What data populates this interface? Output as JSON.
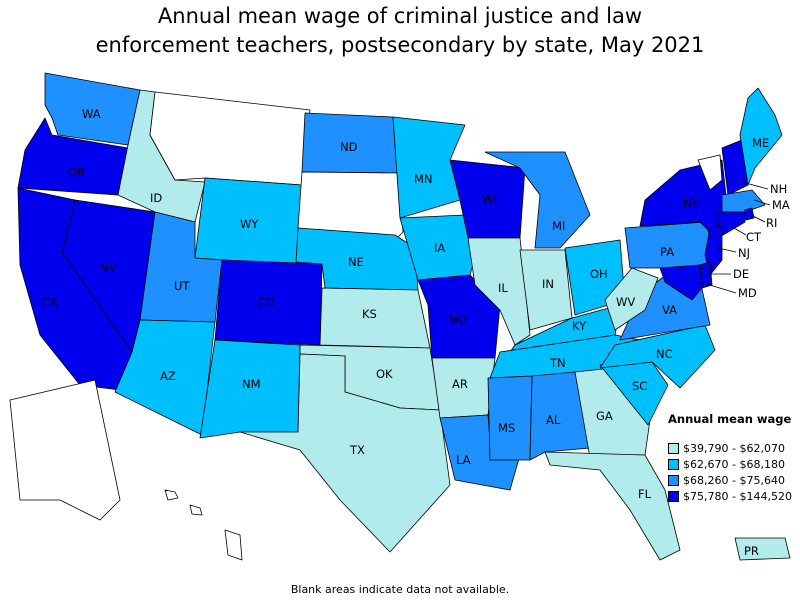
{
  "title": {
    "line1": "Annual mean wage of criminal justice and law",
    "line2": "enforcement teachers, postsecondary by state, May 2021"
  },
  "legend": {
    "title": "Annual mean wage",
    "items": [
      {
        "label": "$39,790 - $62,070",
        "color": "#b2ebec"
      },
      {
        "label": "$62,670 - $68,180",
        "color": "#00bfff"
      },
      {
        "label": "$68,260 - $75,640",
        "color": "#1e90ff"
      },
      {
        "label": "$75,780 - $144,520",
        "color": "#0000ee"
      }
    ]
  },
  "footnote": "Blank areas indicate data not available.",
  "colors": {
    "none": "#ffffff",
    "tier1": "#b2ebec",
    "tier2": "#00bfff",
    "tier3": "#1e90ff",
    "tier4": "#0000ee"
  },
  "states": [
    {
      "abbr": "WA",
      "tier": 3
    },
    {
      "abbr": "OR",
      "tier": 4
    },
    {
      "abbr": "CA",
      "tier": 4
    },
    {
      "abbr": "NV",
      "tier": 4
    },
    {
      "abbr": "ID",
      "tier": 1
    },
    {
      "abbr": "MT",
      "tier": 0
    },
    {
      "abbr": "WY",
      "tier": 2
    },
    {
      "abbr": "UT",
      "tier": 3
    },
    {
      "abbr": "AZ",
      "tier": 2
    },
    {
      "abbr": "CO",
      "tier": 4
    },
    {
      "abbr": "NM",
      "tier": 2
    },
    {
      "abbr": "ND",
      "tier": 3
    },
    {
      "abbr": "SD",
      "tier": 0
    },
    {
      "abbr": "NE",
      "tier": 2
    },
    {
      "abbr": "KS",
      "tier": 1
    },
    {
      "abbr": "OK",
      "tier": 1
    },
    {
      "abbr": "TX",
      "tier": 1
    },
    {
      "abbr": "MN",
      "tier": 2
    },
    {
      "abbr": "IA",
      "tier": 2
    },
    {
      "abbr": "MO",
      "tier": 4
    },
    {
      "abbr": "AR",
      "tier": 1
    },
    {
      "abbr": "LA",
      "tier": 3
    },
    {
      "abbr": "WI",
      "tier": 4
    },
    {
      "abbr": "IL",
      "tier": 1
    },
    {
      "abbr": "MI",
      "tier": 3
    },
    {
      "abbr": "IN",
      "tier": 1
    },
    {
      "abbr": "OH",
      "tier": 2
    },
    {
      "abbr": "KY",
      "tier": 2
    },
    {
      "abbr": "TN",
      "tier": 2
    },
    {
      "abbr": "MS",
      "tier": 3
    },
    {
      "abbr": "AL",
      "tier": 3
    },
    {
      "abbr": "GA",
      "tier": 1
    },
    {
      "abbr": "FL",
      "tier": 1
    },
    {
      "abbr": "SC",
      "tier": 2
    },
    {
      "abbr": "NC",
      "tier": 2
    },
    {
      "abbr": "VA",
      "tier": 3
    },
    {
      "abbr": "WV",
      "tier": 1
    },
    {
      "abbr": "PA",
      "tier": 3
    },
    {
      "abbr": "NY",
      "tier": 4
    },
    {
      "abbr": "VT",
      "tier": 0
    },
    {
      "abbr": "NH",
      "tier": 4
    },
    {
      "abbr": "ME",
      "tier": 2
    },
    {
      "abbr": "MA",
      "tier": 3
    },
    {
      "abbr": "RI",
      "tier": 4
    },
    {
      "abbr": "CT",
      "tier": 4
    },
    {
      "abbr": "NJ",
      "tier": 4
    },
    {
      "abbr": "DE",
      "tier": 4
    },
    {
      "abbr": "MD",
      "tier": 4
    },
    {
      "abbr": "AK",
      "tier": 0
    },
    {
      "abbr": "HI",
      "tier": 0
    },
    {
      "abbr": "PR",
      "tier": 1
    }
  ]
}
